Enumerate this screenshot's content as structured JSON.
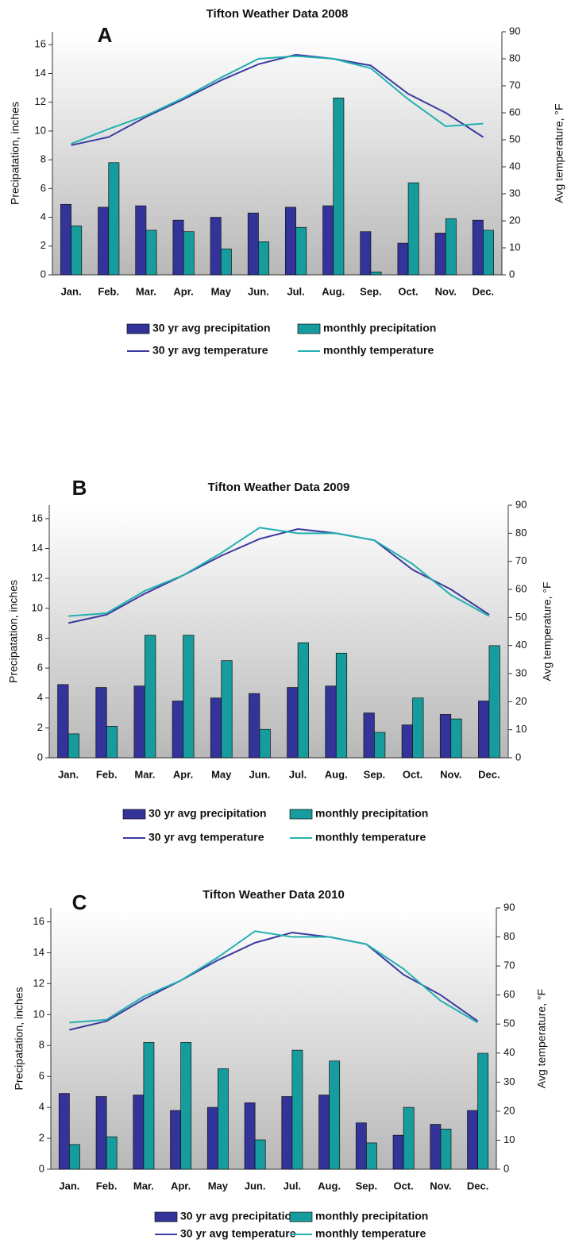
{
  "chart_data": [
    {
      "type": "bar",
      "panel_label": "A",
      "title": "Tifton Weather Data 2008",
      "y_label": "Precipatation, inches",
      "y2_label": "Avg temperature, °F",
      "categories": [
        "Jan.",
        "Feb.",
        "Mar.",
        "Apr.",
        "May",
        "Jun.",
        "Jul.",
        "Aug.",
        "Sep.",
        "Oct.",
        "Nov.",
        "Dec."
      ],
      "series": [
        {
          "name": "30 yr avg precipitation",
          "type": "bar",
          "color": "#333399",
          "values": [
            4.9,
            4.7,
            4.8,
            3.8,
            4.0,
            4.3,
            4.7,
            4.8,
            3.0,
            2.2,
            2.9,
            3.8
          ]
        },
        {
          "name": "monthly precipitation",
          "type": "bar",
          "color": "#169c9c",
          "values": [
            3.4,
            7.8,
            3.1,
            3.0,
            1.8,
            2.3,
            3.3,
            12.3,
            0.2,
            6.4,
            3.9,
            3.1
          ]
        },
        {
          "name": "30 yr avg temperature",
          "type": "line",
          "axis": "y2",
          "color": "#3b3ba0",
          "values": [
            48,
            51,
            58.5,
            65,
            72,
            78,
            81.5,
            80,
            77.5,
            67,
            60,
            51
          ]
        },
        {
          "name": "monthly temperature",
          "type": "line",
          "axis": "y2",
          "color": "#22b0b0",
          "values": [
            48.5,
            54,
            59,
            65.5,
            73,
            80,
            81,
            80,
            76.5,
            65,
            55,
            56
          ]
        }
      ],
      "ylim": [
        0,
        16.9
      ],
      "yticks": [
        0,
        2,
        4,
        6,
        8,
        10,
        12,
        14,
        16
      ],
      "y2lim": [
        0,
        90
      ],
      "y2ticks": [
        0,
        10,
        20,
        30,
        40,
        50,
        60,
        70,
        80,
        90
      ]
    },
    {
      "type": "bar",
      "panel_label": "B",
      "title": "Tifton Weather Data 2009",
      "y_label": "Precipatation, inches",
      "y2_label": "Avg temperature, °F",
      "categories": [
        "Jan.",
        "Feb.",
        "Mar.",
        "Apr.",
        "May",
        "Jun.",
        "Jul.",
        "Aug.",
        "Sep.",
        "Oct.",
        "Nov.",
        "Dec."
      ],
      "series": [
        {
          "name": "30 yr avg precipitation",
          "type": "bar",
          "color": "#333399",
          "values": [
            4.9,
            4.7,
            4.8,
            3.8,
            4.0,
            4.3,
            4.7,
            4.8,
            3.0,
            2.2,
            2.9,
            3.8
          ]
        },
        {
          "name": "monthly precipitation",
          "type": "bar",
          "color": "#169c9c",
          "values": [
            1.6,
            2.1,
            8.2,
            8.2,
            6.5,
            1.9,
            7.7,
            7.0,
            1.7,
            4.0,
            2.6,
            7.5
          ]
        },
        {
          "name": "30 yr avg temperature",
          "type": "line",
          "axis": "y2",
          "color": "#3b3ba0",
          "values": [
            48,
            51,
            58.5,
            65,
            72,
            78,
            81.5,
            80,
            77.5,
            67,
            60,
            51
          ]
        },
        {
          "name": "monthly temperature",
          "type": "line",
          "axis": "y2",
          "color": "#22b0b0",
          "values": [
            50.5,
            51.5,
            59.5,
            65,
            73,
            82,
            80,
            80,
            77.5,
            69,
            58,
            50.5
          ]
        }
      ],
      "ylim": [
        0,
        16.9
      ],
      "yticks": [
        0,
        2,
        4,
        6,
        8,
        10,
        12,
        14,
        16
      ],
      "y2lim": [
        0,
        90
      ],
      "y2ticks": [
        0,
        10,
        20,
        30,
        40,
        50,
        60,
        70,
        80,
        90
      ]
    },
    {
      "type": "bar",
      "panel_label": "C",
      "title": "Tifton Weather Data 2010",
      "y_label": "Precipatation, inches",
      "y2_label": "Avg temperature, °F",
      "categories": [
        "Jan.",
        "Feb.",
        "Mar.",
        "Apr.",
        "May",
        "Jun.",
        "Jul.",
        "Aug.",
        "Sep.",
        "Oct.",
        "Nov.",
        "Dec."
      ],
      "series": [
        {
          "name": "30 yr avg precipitation",
          "type": "bar",
          "color": "#333399",
          "values": [
            4.9,
            4.7,
            4.8,
            3.8,
            4.0,
            4.3,
            4.7,
            4.8,
            3.0,
            2.2,
            2.9,
            3.8
          ]
        },
        {
          "name": "monthly precipitation",
          "type": "bar",
          "color": "#169c9c",
          "values": [
            1.6,
            2.1,
            8.2,
            8.2,
            6.5,
            1.9,
            7.7,
            7.0,
            1.7,
            4.0,
            2.6,
            7.5
          ]
        },
        {
          "name": "30 yr avg temperature",
          "type": "line",
          "axis": "y2",
          "color": "#3b3ba0",
          "values": [
            48,
            51,
            58.5,
            65,
            72,
            78,
            81.5,
            80,
            77.5,
            67,
            60,
            51
          ]
        },
        {
          "name": "monthly temperature",
          "type": "line",
          "axis": "y2",
          "color": "#22b0b0",
          "values": [
            50.5,
            51.5,
            59.5,
            65,
            73,
            82,
            80,
            80,
            77.5,
            69,
            58,
            50.5
          ]
        }
      ],
      "ylim": [
        0,
        16.9
      ],
      "yticks": [
        0,
        2,
        4,
        6,
        8,
        10,
        12,
        14,
        16
      ],
      "y2lim": [
        0,
        90
      ],
      "y2ticks": [
        0,
        10,
        20,
        30,
        40,
        50,
        60,
        70,
        80,
        90
      ]
    }
  ]
}
